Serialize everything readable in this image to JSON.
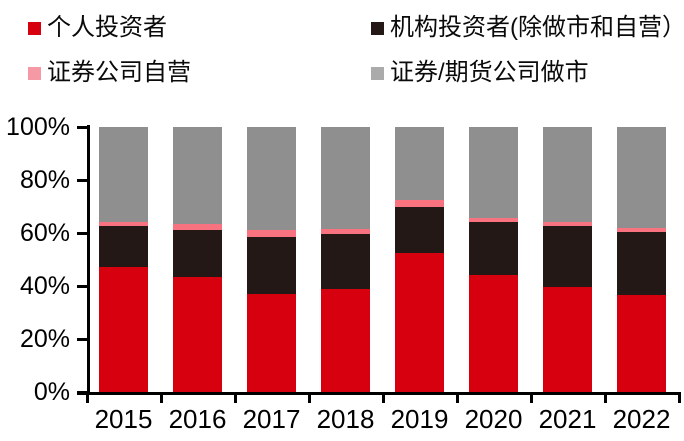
{
  "chart_data": {
    "type": "bar",
    "subtype": "stacked-100-percent",
    "title": "",
    "categories": [
      "2015",
      "2016",
      "2017",
      "2018",
      "2019",
      "2020",
      "2021",
      "2022"
    ],
    "series": [
      {
        "name": "个人投资者",
        "color": "#d7000f",
        "legend_color": "#d7000f",
        "values": [
          47,
          43.5,
          37,
          39,
          52.5,
          44,
          39.5,
          36.5
        ]
      },
      {
        "name": "机构投资者(除做市和自营）",
        "color": "#231815",
        "legend_color": "#231815",
        "values": [
          15.5,
          17.5,
          21.5,
          20.5,
          17.5,
          20,
          23,
          24
        ]
      },
      {
        "name": "证券公司自营",
        "color": "#f8737f",
        "legend_color": "#f59aa4",
        "values": [
          1.5,
          2.5,
          2.5,
          2,
          2.5,
          1.5,
          1.5,
          1.5
        ]
      },
      {
        "name": "证券/期货公司做市",
        "color": "#8f8f8f",
        "legend_color": "#ababab",
        "values": [
          36,
          36.5,
          39,
          38.5,
          27.5,
          34.5,
          36,
          38
        ]
      }
    ],
    "stack_order_bottom_to_top": [
      "个人投资者",
      "机构投资者(除做市和自营）",
      "证券公司自营",
      "证券/期货公司做市"
    ],
    "xlabel": "",
    "ylabel": "",
    "y_ticks": [
      "0%",
      "20%",
      "40%",
      "60%",
      "80%",
      "100%"
    ],
    "ylim": [
      0,
      100
    ],
    "grid": false,
    "legend_position": "top",
    "axis_color": "#000000"
  }
}
